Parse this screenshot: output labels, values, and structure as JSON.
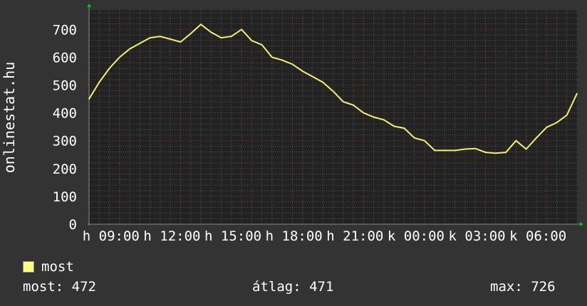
{
  "chart_data": {
    "type": "line",
    "ylabel": "onlinestat.hu",
    "ylim": [
      0,
      770
    ],
    "yticks": [
      0,
      100,
      200,
      300,
      400,
      500,
      600,
      700
    ],
    "xtick_labels": [
      "h 09:00",
      "h 12:00",
      "h 15:00",
      "h 18:00",
      "h 21:00",
      "k 00:00",
      "k 03:00",
      "k 06:00"
    ],
    "x_start": "07:30",
    "x_step_minutes": 30,
    "grid": true,
    "line_color": "#f0f070",
    "series": [
      {
        "name": "most",
        "values": [
          450,
          510,
          560,
          600,
          630,
          650,
          670,
          675,
          665,
          655,
          685,
          718,
          690,
          670,
          675,
          700,
          660,
          645,
          600,
          590,
          575,
          550,
          530,
          510,
          478,
          440,
          428,
          400,
          385,
          375,
          352,
          345,
          310,
          300,
          265,
          265,
          265,
          270,
          272,
          258,
          255,
          258,
          300,
          270,
          310,
          348,
          365,
          392,
          470
        ]
      }
    ],
    "legend": [
      {
        "label": "most",
        "color": "#ffff80"
      }
    ],
    "stats": {
      "now": "most: 472",
      "avg": "átlag: 471",
      "max": "max: 726"
    }
  }
}
